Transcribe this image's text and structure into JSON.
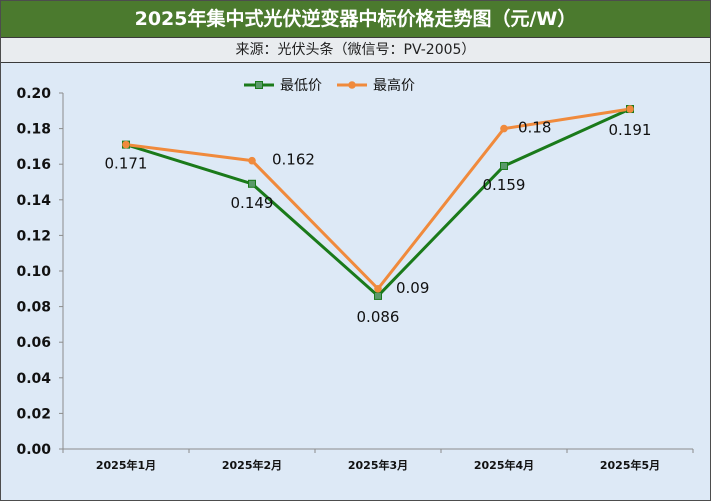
{
  "title": "2025年集中式光伏逆变器中标价格走势图（元/W）",
  "source": "来源：光伏头条（微信号：PV-2005）",
  "colors": {
    "title_bg": "#4b7a2e",
    "plot_bg": "#dde9f6",
    "series_low": "#1a7a1a",
    "series_high": "#f08a3c"
  },
  "chart_data": {
    "type": "line",
    "categories": [
      "2025年1月",
      "2025年2月",
      "2025年3月",
      "2025年4月",
      "2025年5月"
    ],
    "ylim": [
      0,
      0.2
    ],
    "yticks": [
      "0.00",
      "0.02",
      "0.04",
      "0.06",
      "0.08",
      "0.10",
      "0.12",
      "0.14",
      "0.16",
      "0.18",
      "0.20"
    ],
    "legend_position": "top-center",
    "grid": false,
    "series": [
      {
        "name": "最低价",
        "values": [
          0.171,
          0.149,
          0.086,
          0.159,
          0.191
        ],
        "labels": [
          "0.171",
          "0.149",
          "0.086",
          "0.159",
          "0.191"
        ],
        "marker": "square"
      },
      {
        "name": "最高价",
        "values": [
          0.171,
          0.162,
          0.09,
          0.18,
          0.191
        ],
        "labels": [
          "",
          "0.162",
          "0.09",
          "0.18",
          ""
        ],
        "marker": "circle"
      }
    ]
  }
}
